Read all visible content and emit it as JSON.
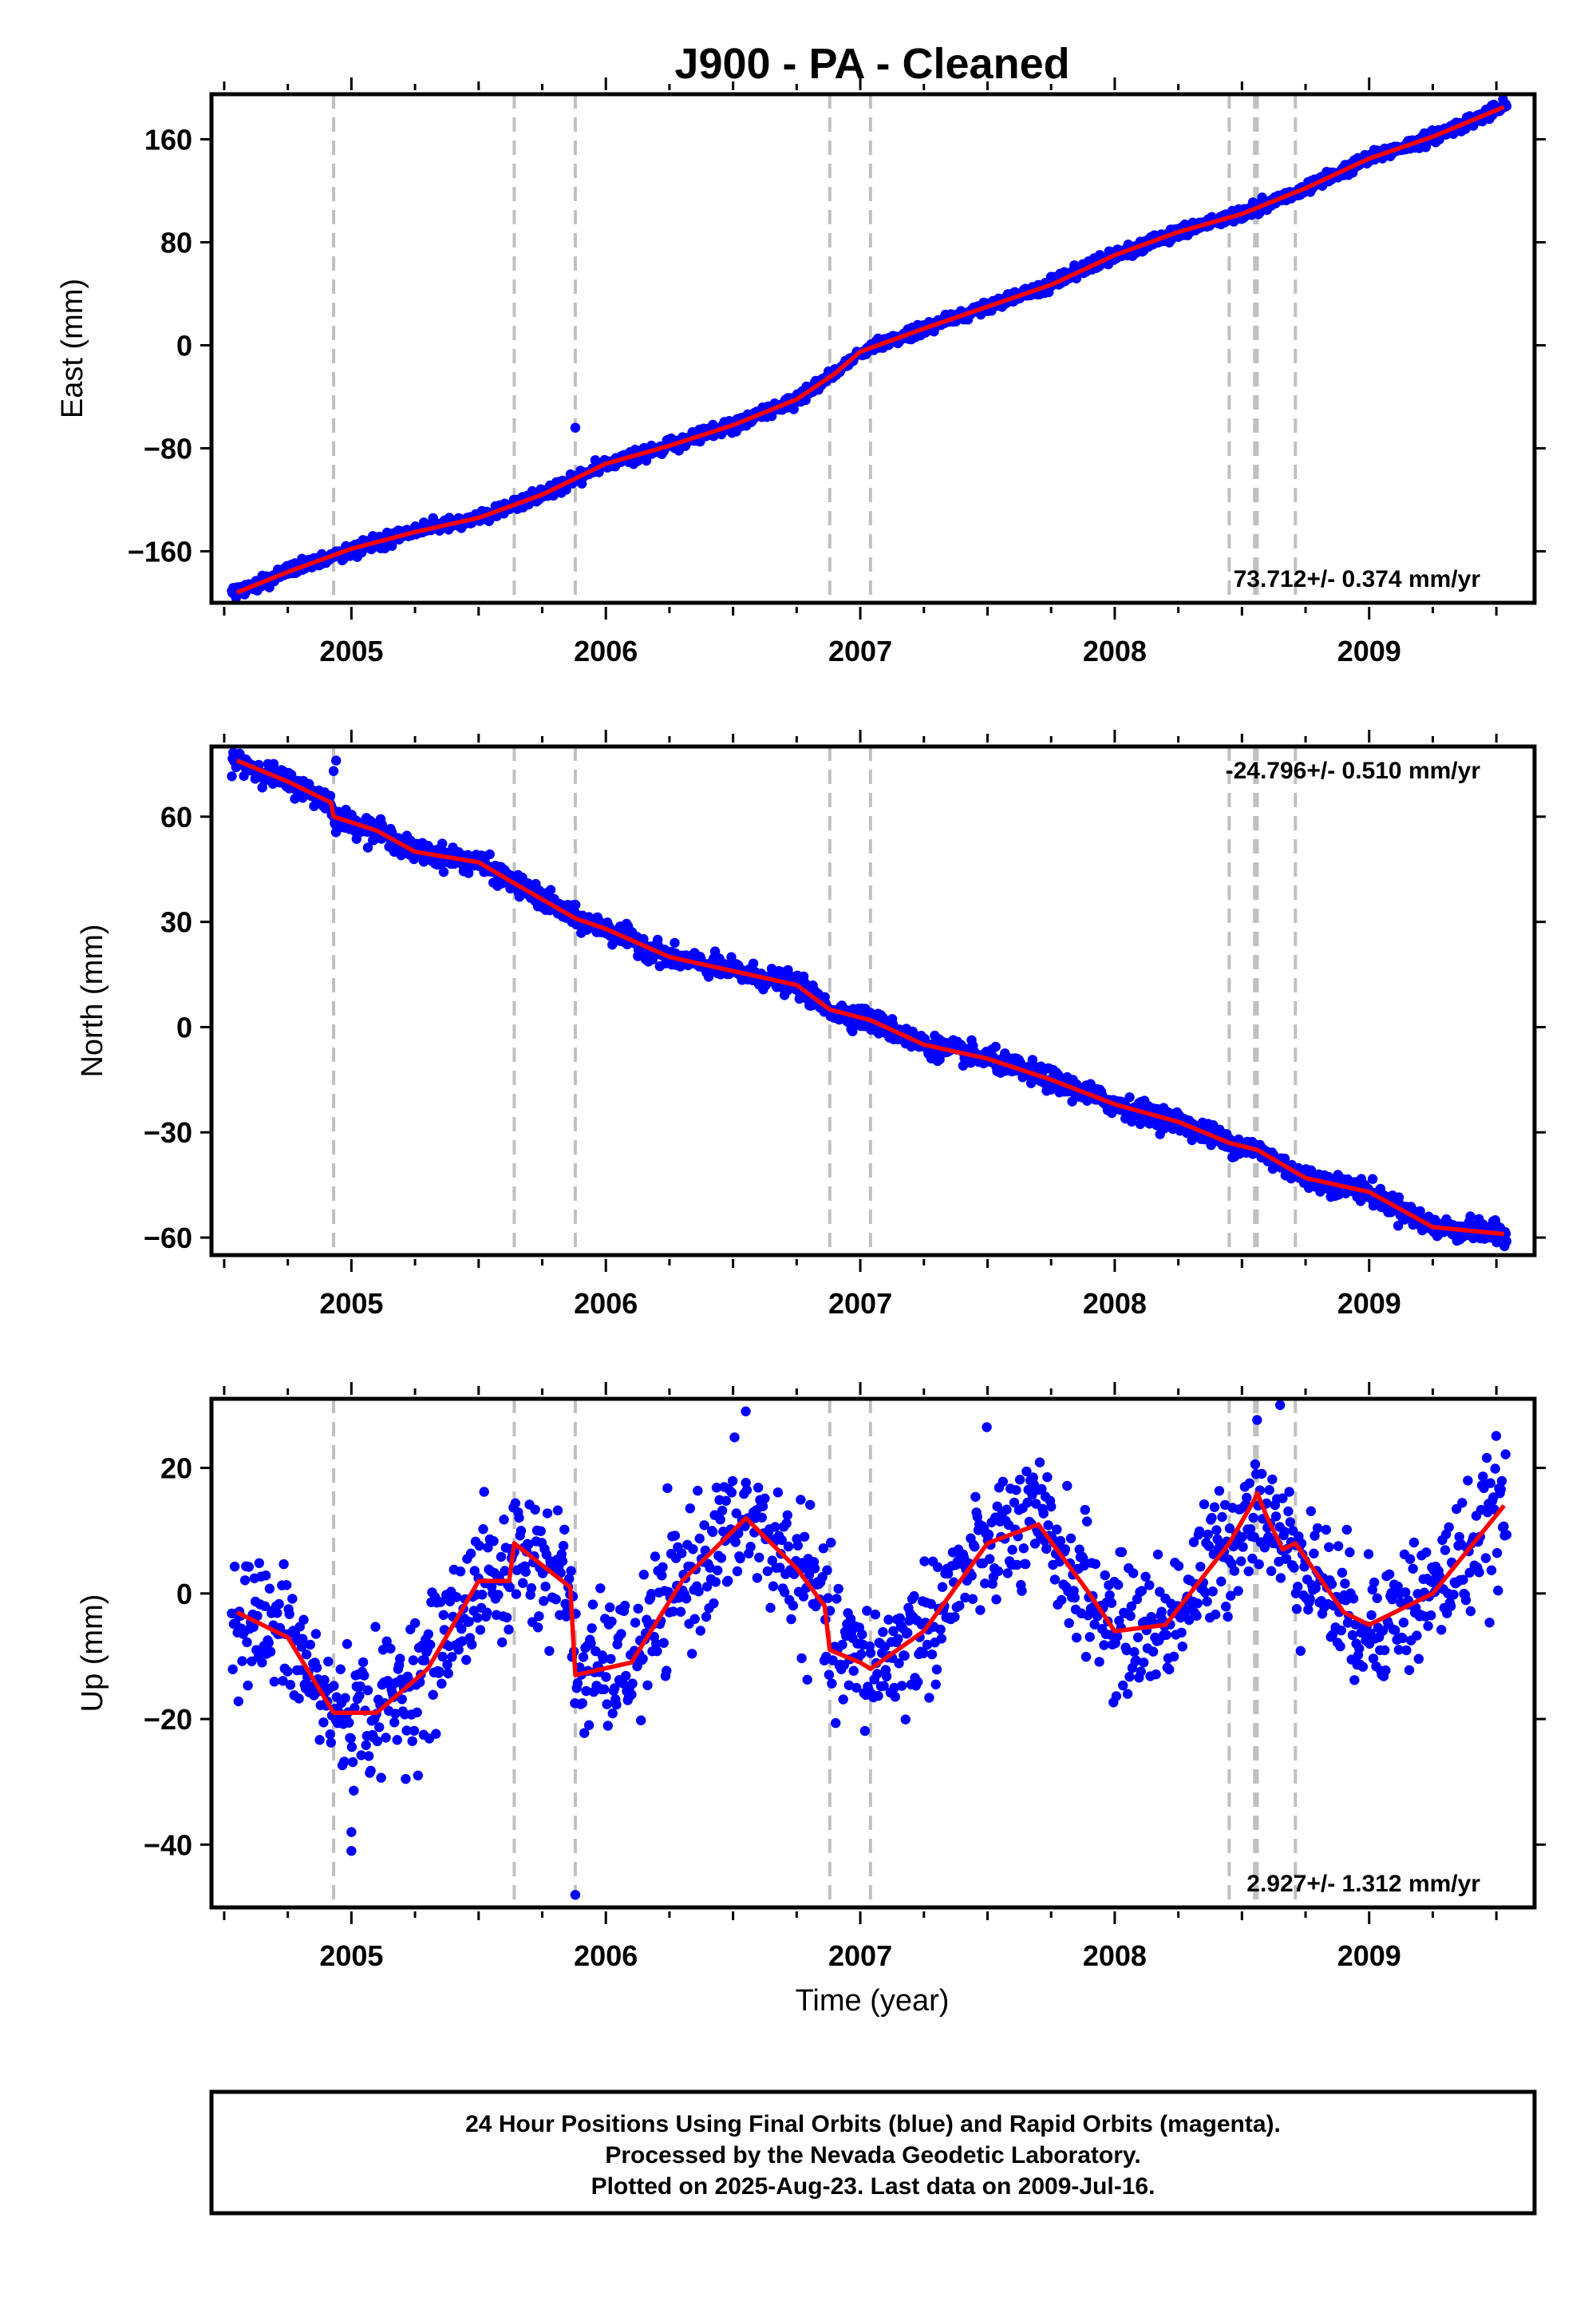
{
  "chart_data": {
    "type": "scatter",
    "title": "J900  - PA - Cleaned",
    "xlabel": "Time (year)",
    "x_ticks": [
      "2005",
      "2006",
      "2007",
      "2008",
      "2009"
    ],
    "xlim": [
      2004.45,
      2009.65
    ],
    "colors": {
      "data_points": "#0000ff",
      "model_line": "#ff0000",
      "event_lines": "#c0c0c0"
    },
    "event_markers": [
      2004.93,
      2005.64,
      2005.88,
      2006.88,
      2007.04,
      2008.45,
      2008.55,
      2008.56,
      2008.71
    ],
    "panels": [
      {
        "ylabel": "East (mm)",
        "ylim": [
          -200,
          195
        ],
        "y_ticks": [
          160,
          80,
          0,
          -80,
          -160
        ],
        "y_tick_labels": [
          "160",
          "80",
          "0",
          "−80",
          "−160"
        ],
        "rate": "73.712+/- 0.374 mm/yr",
        "rate_position": "bottom-right",
        "series": [
          {
            "kind": "points",
            "x": [
              2004.55,
              2004.75,
              2005.0,
              2005.25,
              2005.5,
              2005.75,
              2006.0,
              2006.25,
              2006.5,
              2006.75,
              2006.9,
              2007.0,
              2007.25,
              2007.5,
              2007.75,
              2008.0,
              2008.25,
              2008.5,
              2008.75,
              2009.0,
              2009.25,
              2009.53
            ],
            "y": [
              -192,
              -176,
              -158,
              -145,
              -134,
              -116,
              -92,
              -78,
              -62,
              -42,
              -22,
              -5,
              13,
              30,
              47,
              70,
              88,
              102,
              122,
              145,
              162,
              185
            ]
          },
          {
            "kind": "outlier",
            "x": [
              2005.88
            ],
            "y": [
              -64
            ]
          },
          {
            "kind": "model",
            "x": [
              2004.55,
              2004.75,
              2005.0,
              2005.25,
              2005.5,
              2005.75,
              2006.0,
              2006.25,
              2006.5,
              2006.75,
              2006.9,
              2007.0,
              2007.25,
              2007.5,
              2007.75,
              2008.0,
              2008.25,
              2008.5,
              2008.75,
              2009.0,
              2009.25,
              2009.53
            ],
            "y": [
              -192,
              -176,
              -158,
              -145,
              -134,
              -116,
              -92,
              -78,
              -62,
              -42,
              -22,
              -5,
              13,
              30,
              47,
              70,
              88,
              102,
              122,
              145,
              162,
              185
            ]
          }
        ]
      },
      {
        "ylabel": "North (mm)",
        "ylim": [
          -65,
          80
        ],
        "y_ticks": [
          60,
          30,
          0,
          -30,
          -60
        ],
        "y_tick_labels": [
          "60",
          "30",
          "0",
          "−30",
          "−60"
        ],
        "rate": "-24.796+/- 0.510 mm/yr",
        "rate_position": "top-right",
        "series": [
          {
            "kind": "points",
            "x": [
              2004.55,
              2004.75,
              2004.92,
              2004.93,
              2005.1,
              2005.25,
              2005.5,
              2005.64,
              2005.88,
              2006.0,
              2006.25,
              2006.5,
              2006.75,
              2006.88,
              2007.04,
              2007.25,
              2007.5,
              2007.75,
              2008.0,
              2008.25,
              2008.45,
              2008.56,
              2008.75,
              2009.0,
              2009.25,
              2009.53
            ],
            "y": [
              76,
              70,
              64,
              60,
              56,
              50,
              47,
              41,
              31,
              28,
              20,
              16,
              12,
              5,
              2,
              -5,
              -9,
              -15,
              -22,
              -27,
              -33,
              -35,
              -43,
              -47,
              -57,
              -59
            ]
          },
          {
            "kind": "outlier",
            "x": [
              2004.93,
              2004.94
            ],
            "y": [
              73,
              76
            ]
          },
          {
            "kind": "model",
            "x": [
              2004.55,
              2004.75,
              2004.92,
              2004.93,
              2005.1,
              2005.25,
              2005.5,
              2005.64,
              2005.88,
              2006.0,
              2006.25,
              2006.5,
              2006.75,
              2006.88,
              2007.04,
              2007.25,
              2007.5,
              2007.75,
              2008.0,
              2008.25,
              2008.45,
              2008.56,
              2008.75,
              2009.0,
              2009.25,
              2009.53
            ],
            "y": [
              76,
              70,
              64,
              60,
              56,
              50,
              47,
              41,
              31,
              28,
              20,
              16,
              12,
              5,
              2,
              -5,
              -9,
              -15,
              -22,
              -27,
              -33,
              -35,
              -43,
              -47,
              -57,
              -59
            ]
          }
        ]
      },
      {
        "ylabel": "Up (mm)",
        "ylim": [
          -50,
          31
        ],
        "y_ticks": [
          20,
          0,
          -20,
          -40
        ],
        "y_tick_labels": [
          "20",
          "0",
          "−20",
          "−40"
        ],
        "rate": "2.927+/- 1.312 mm/yr",
        "rate_position": "bottom-right",
        "seasonal_fit": {
          "offset": -19.4,
          "trend": 2.93,
          "amplitude": 11.5,
          "phase": 5.7,
          "period_years": 1.0,
          "t0": 2007.0
        },
        "series": [
          {
            "kind": "outlier",
            "x": [
              2005.0,
              2005.0,
              2005.88,
              2008.65,
              2006.55
            ],
            "y": [
              -38,
              -41,
              -48,
              30,
              29
            ]
          },
          {
            "kind": "model",
            "x": [
              2004.55,
              2004.75,
              2004.9,
              2004.93,
              2005.1,
              2005.3,
              2005.5,
              2005.62,
              2005.64,
              2005.86,
              2005.88,
              2006.1,
              2006.3,
              2006.55,
              2006.75,
              2006.86,
              2006.88,
              2007.0,
              2007.04,
              2007.25,
              2007.5,
              2007.7,
              2007.9,
              2008.0,
              2008.2,
              2008.45,
              2008.55,
              2008.56,
              2008.6,
              2008.66,
              2008.71,
              2008.9,
              2009.0,
              2009.25,
              2009.53
            ],
            "y": [
              -3,
              -7,
              -17,
              -19,
              -19,
              -12,
              2,
              2,
              8,
              1,
              -13,
              -11,
              2,
              12,
              4,
              -2,
              -9,
              -11,
              -12,
              -6,
              8,
              11,
              0,
              -6,
              -5,
              8,
              15,
              16,
              12,
              7,
              8,
              -3,
              -5,
              0,
              14
            ]
          }
        ]
      }
    ],
    "footer_lines": [
      "24 Hour Positions Using Final Orbits (blue) and Rapid Orbits (magenta).",
      "Processed by the Nevada Geodetic Laboratory.",
      "Plotted on 2025-Aug-23. Last data on 2009-Jul-16."
    ]
  }
}
